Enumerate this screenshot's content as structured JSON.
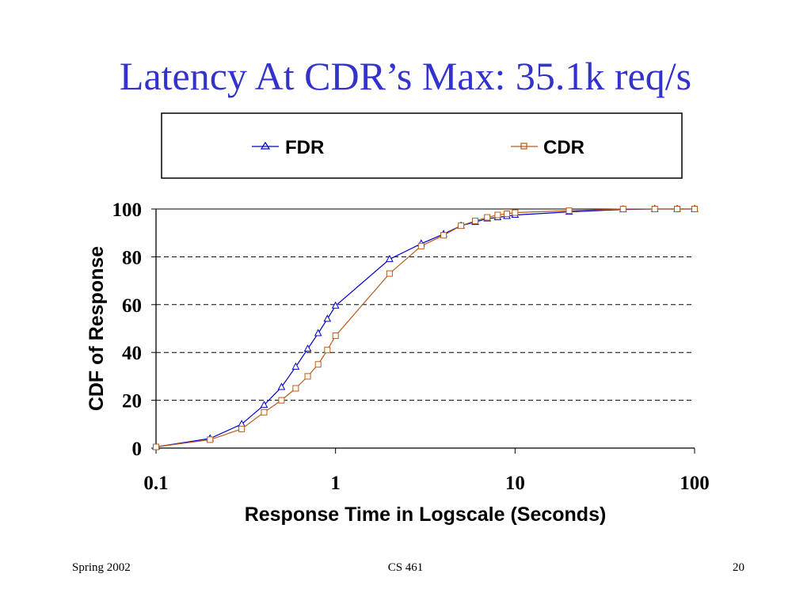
{
  "slide": {
    "title": "Latency At CDR’s Max: 35.1k req/s",
    "title_color": "#3333cc"
  },
  "footer": {
    "left": "Spring 2002",
    "center": "CS 461",
    "right": "20"
  },
  "chart_data": {
    "type": "line",
    "title": "",
    "xlabel": "Response Time in Logscale (Seconds)",
    "ylabel": "CDF of Response",
    "x_scale": "log",
    "xlim": [
      0.1,
      100
    ],
    "ylim": [
      0,
      100
    ],
    "x_ticks": [
      0.1,
      1,
      10,
      100
    ],
    "x_tick_labels": [
      "0.1",
      "1",
      "10",
      "100"
    ],
    "y_ticks": [
      0,
      20,
      40,
      60,
      80,
      100
    ],
    "y_tick_labels": [
      "0",
      "20",
      "40",
      "60",
      "80",
      "100"
    ],
    "grid": "horizontal dashed",
    "legend": "top, boxed",
    "series": [
      {
        "name": "FDR",
        "color": "#0000cc",
        "marker": "triangle",
        "x": [
          0.1,
          0.2,
          0.3,
          0.4,
          0.5,
          0.6,
          0.7,
          0.8,
          0.9,
          1,
          2,
          3,
          4,
          5,
          6,
          7,
          8,
          9,
          10,
          20,
          40,
          60,
          80,
          100
        ],
        "y": [
          0.5,
          4,
          10,
          18,
          25.5,
          34,
          41.5,
          48,
          54,
          59.5,
          79,
          85.5,
          89.5,
          93,
          94.5,
          96,
          96.5,
          97,
          97.5,
          98.8,
          99.8,
          100,
          100,
          100
        ]
      },
      {
        "name": "CDR",
        "color": "#b85a1a",
        "marker": "square",
        "x": [
          0.1,
          0.2,
          0.3,
          0.4,
          0.5,
          0.6,
          0.7,
          0.8,
          0.9,
          1,
          2,
          3,
          4,
          5,
          6,
          7,
          8,
          9,
          10,
          20,
          40,
          60,
          80,
          100
        ],
        "y": [
          0.5,
          3.5,
          8,
          15,
          20,
          25,
          30,
          35,
          41,
          47,
          73,
          84.5,
          89,
          93,
          95,
          96.5,
          97.5,
          98,
          98.5,
          99.3,
          100,
          100,
          100,
          100
        ]
      }
    ]
  }
}
